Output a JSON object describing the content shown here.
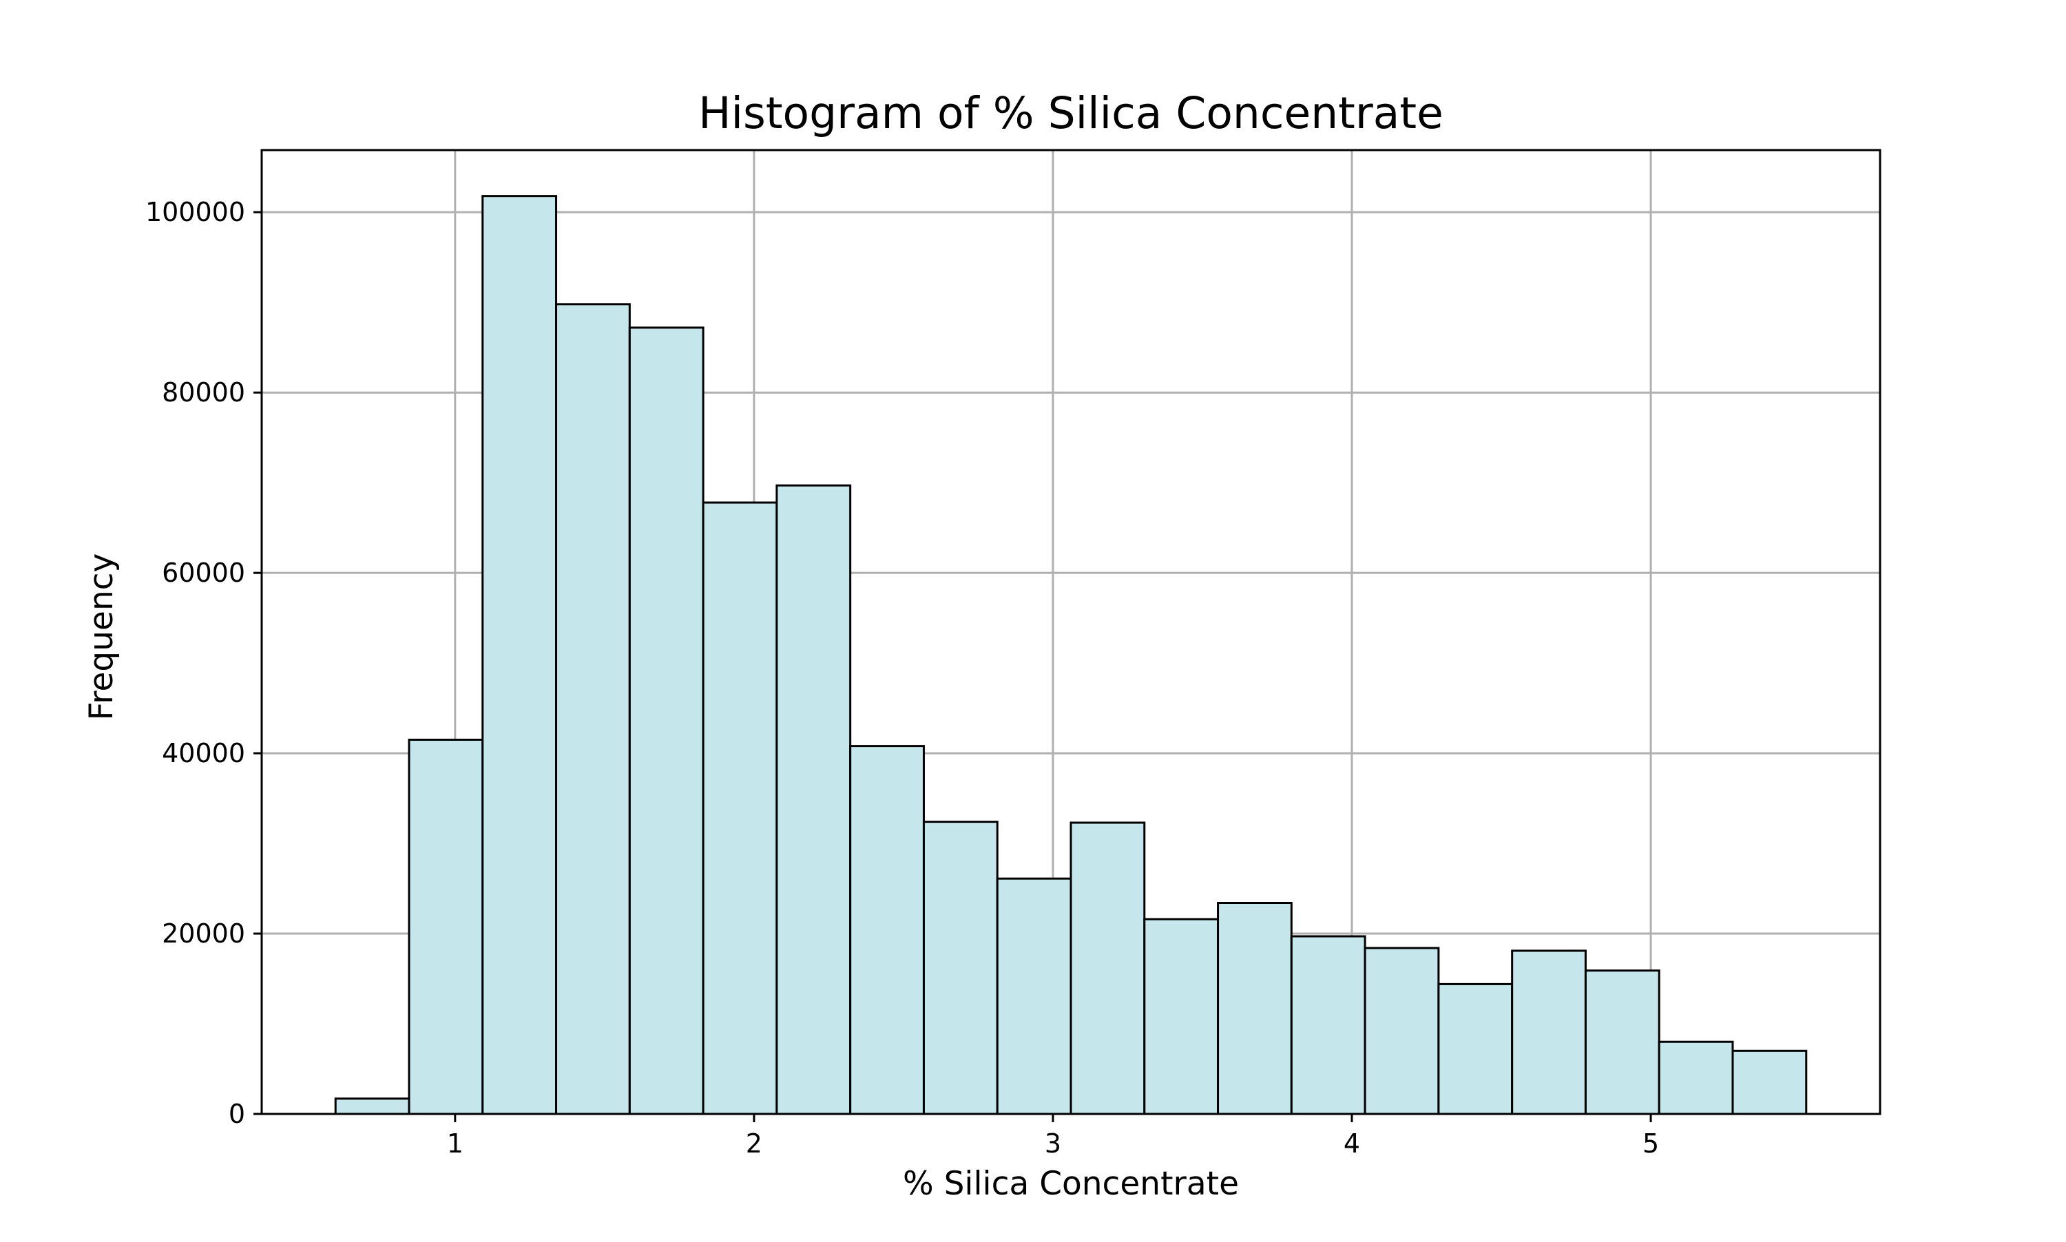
{
  "chart_data": {
    "type": "bar",
    "title": "Histogram of % Silica Concentrate",
    "xlabel": "% Silica Concentrate",
    "ylabel": "Frequency",
    "bins": [
      {
        "x0": 0.6,
        "x1": 0.846,
        "value": 1700
      },
      {
        "x0": 0.846,
        "x1": 1.092,
        "value": 41500
      },
      {
        "x0": 1.092,
        "x1": 1.338,
        "value": 101800
      },
      {
        "x0": 1.338,
        "x1": 1.584,
        "value": 89800
      },
      {
        "x0": 1.584,
        "x1": 1.83,
        "value": 87200
      },
      {
        "x0": 1.83,
        "x1": 2.076,
        "value": 67800
      },
      {
        "x0": 2.076,
        "x1": 2.322,
        "value": 69700
      },
      {
        "x0": 2.322,
        "x1": 2.568,
        "value": 40800
      },
      {
        "x0": 2.568,
        "x1": 2.814,
        "value": 32400
      },
      {
        "x0": 2.814,
        "x1": 3.06,
        "value": 26100
      },
      {
        "x0": 3.06,
        "x1": 3.306,
        "value": 32300
      },
      {
        "x0": 3.306,
        "x1": 3.552,
        "value": 21600
      },
      {
        "x0": 3.552,
        "x1": 3.798,
        "value": 23400
      },
      {
        "x0": 3.798,
        "x1": 4.044,
        "value": 19700
      },
      {
        "x0": 4.044,
        "x1": 4.29,
        "value": 18400
      },
      {
        "x0": 4.29,
        "x1": 4.536,
        "value": 14400
      },
      {
        "x0": 4.536,
        "x1": 4.782,
        "value": 18100
      },
      {
        "x0": 4.782,
        "x1": 5.028,
        "value": 15900
      },
      {
        "x0": 5.028,
        "x1": 5.274,
        "value": 8000
      },
      {
        "x0": 5.274,
        "x1": 5.52,
        "value": 7000
      }
    ],
    "xlim": [
      0.353,
      5.767
    ],
    "ylim": [
      0,
      106890
    ],
    "xticks": [
      1,
      2,
      3,
      4,
      5
    ],
    "yticks": [
      0,
      20000,
      40000,
      60000,
      80000,
      100000
    ],
    "grid": true,
    "bar_color": "#c5e6ea",
    "edge_color": "#000000",
    "grid_color": "#b0b0b0"
  }
}
